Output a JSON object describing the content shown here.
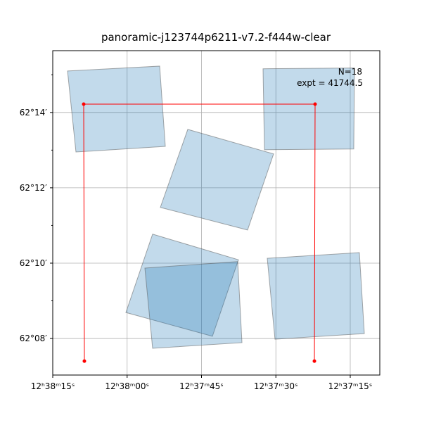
{
  "chart_data": {
    "type": "footprint",
    "title": "panoramic-j123744p6211-v7.2-f444w-clear",
    "annotations": [
      "N=18",
      "expt = 41744.5"
    ],
    "xlim": [
      2295,
      2229.04
    ],
    "ylim": [
      7.03,
      15.64
    ],
    "xticks": [
      {
        "value": 2295,
        "label": "12ʰ38ᵐ15ˢ"
      },
      {
        "value": 2280,
        "label": "12ʰ38ᵐ00ˢ"
      },
      {
        "value": 2265,
        "label": "12ʰ37ᵐ45ˢ"
      },
      {
        "value": 2250,
        "label": "12ʰ37ᵐ30ˢ"
      },
      {
        "value": 2235,
        "label": "12ʰ37ᵐ15ˢ"
      }
    ],
    "yticks": [
      {
        "value": 14,
        "label": "62°14′"
      },
      {
        "value": 12,
        "label": "62°12′"
      },
      {
        "value": 10,
        "label": "62°10′"
      },
      {
        "value": 8,
        "label": "62°08′"
      }
    ],
    "yminorticks": [
      15,
      13,
      11,
      9
    ],
    "grid": true,
    "footprint_color": "#1f77b4",
    "footprint_edge": "#555555",
    "footprints": [
      {
        "ra": [
          2292.02,
          2273.44,
          2272.3,
          2290.32
        ],
        "dec": [
          15.1,
          15.23,
          13.1,
          12.95
        ]
      },
      {
        "ra": [
          2252.59,
          2234.15,
          2234.29,
          2252.3
        ],
        "dec": [
          15.16,
          15.18,
          13.03,
          13.01
        ]
      },
      {
        "ra": [
          2267.77,
          2250.46,
          2255.71,
          2273.3
        ],
        "dec": [
          13.55,
          12.9,
          10.88,
          11.48
        ]
      },
      {
        "ra": [
          2274.86,
          2257.55,
          2262.8,
          2280.25
        ],
        "dec": [
          10.77,
          10.09,
          8.06,
          8.69
        ]
      },
      {
        "ra": [
          2276.42,
          2257.7,
          2256.84,
          2274.86
        ],
        "dec": [
          9.87,
          10.04,
          7.89,
          7.74
        ]
      },
      {
        "ra": [
          2251.74,
          2233.16,
          2232.16,
          2250.18
        ],
        "dec": [
          10.13,
          10.28,
          8.13,
          7.98
        ]
      }
    ],
    "outline": {
      "color": "#ff0000",
      "ra": [
        2288.62,
        2288.76,
        2242.09,
        2242.23
      ],
      "dec": [
        7.4,
        14.22,
        14.22,
        7.4
      ]
    }
  }
}
